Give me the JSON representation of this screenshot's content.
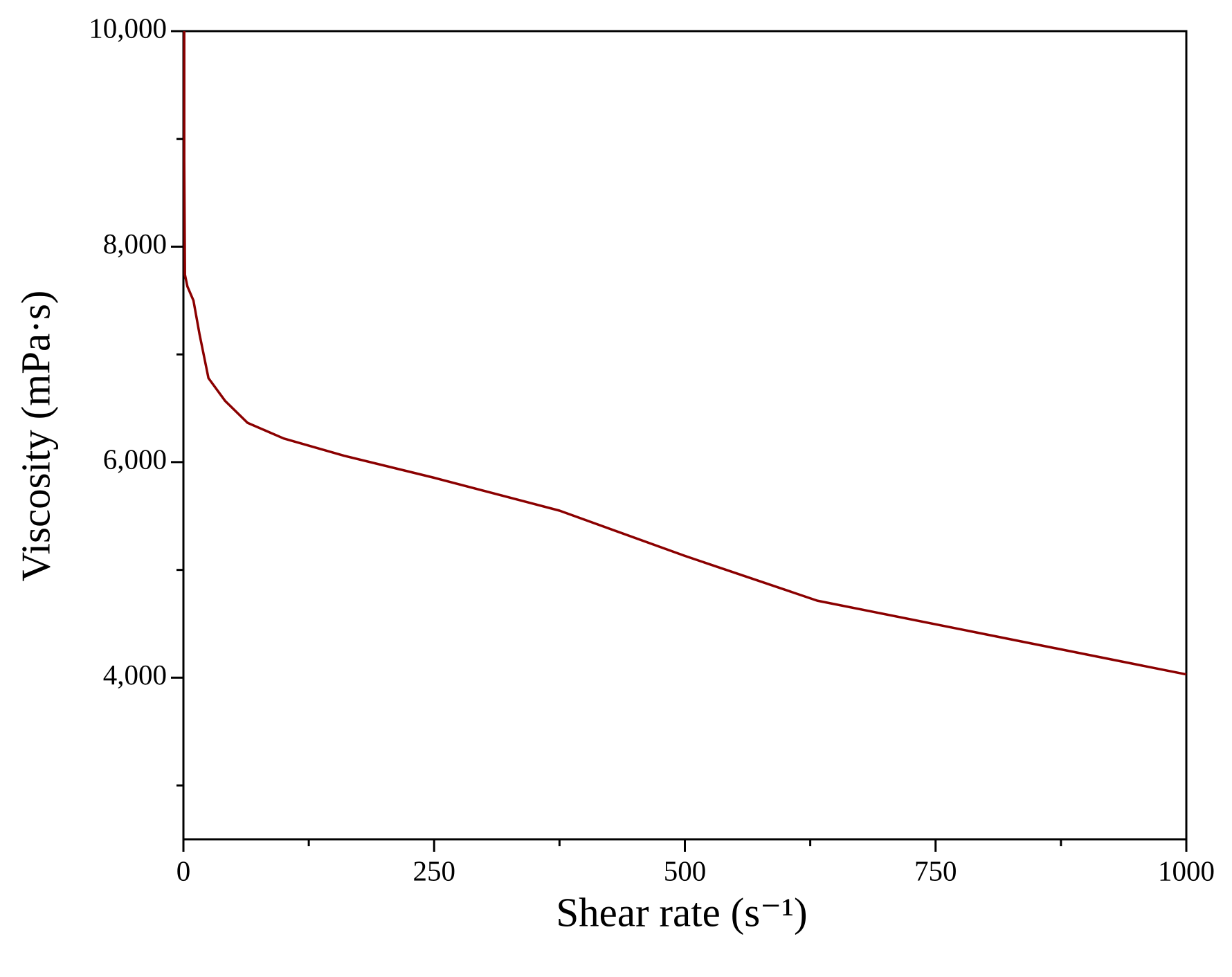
{
  "chart_data": {
    "type": "line",
    "xlabel": "Shear rate (s⁻¹)",
    "ylabel": "Viscosity (mPa·s)",
    "series": [
      {
        "name": "Viscosity",
        "color": "#8b0000",
        "x": [
          0.8,
          0.8,
          1.5,
          4,
          10,
          16,
          25,
          41.5,
          64,
          100,
          160,
          250,
          375,
          500,
          632,
          1000
        ],
        "values": [
          10000,
          8800,
          7740,
          7630,
          7500,
          7190,
          6780,
          6570,
          6365,
          6220,
          6060,
          5855,
          5550,
          5130,
          4715,
          4030
        ]
      }
    ],
    "xlim": [
      0,
      1000
    ],
    "xticks": [
      0,
      250,
      500,
      750,
      1000
    ],
    "xminorticks": [
      125,
      375,
      625,
      875
    ],
    "ylim": [
      2500,
      10000
    ],
    "yticks": [
      {
        "value": 4000,
        "label": "4,000"
      },
      {
        "value": 6000,
        "label": "6,000"
      },
      {
        "value": 8000,
        "label": "8,000"
      },
      {
        "value": 10000,
        "label": "10,000"
      }
    ],
    "yminorticks": [
      3000,
      5000,
      7000,
      9000
    ],
    "grid": false
  }
}
